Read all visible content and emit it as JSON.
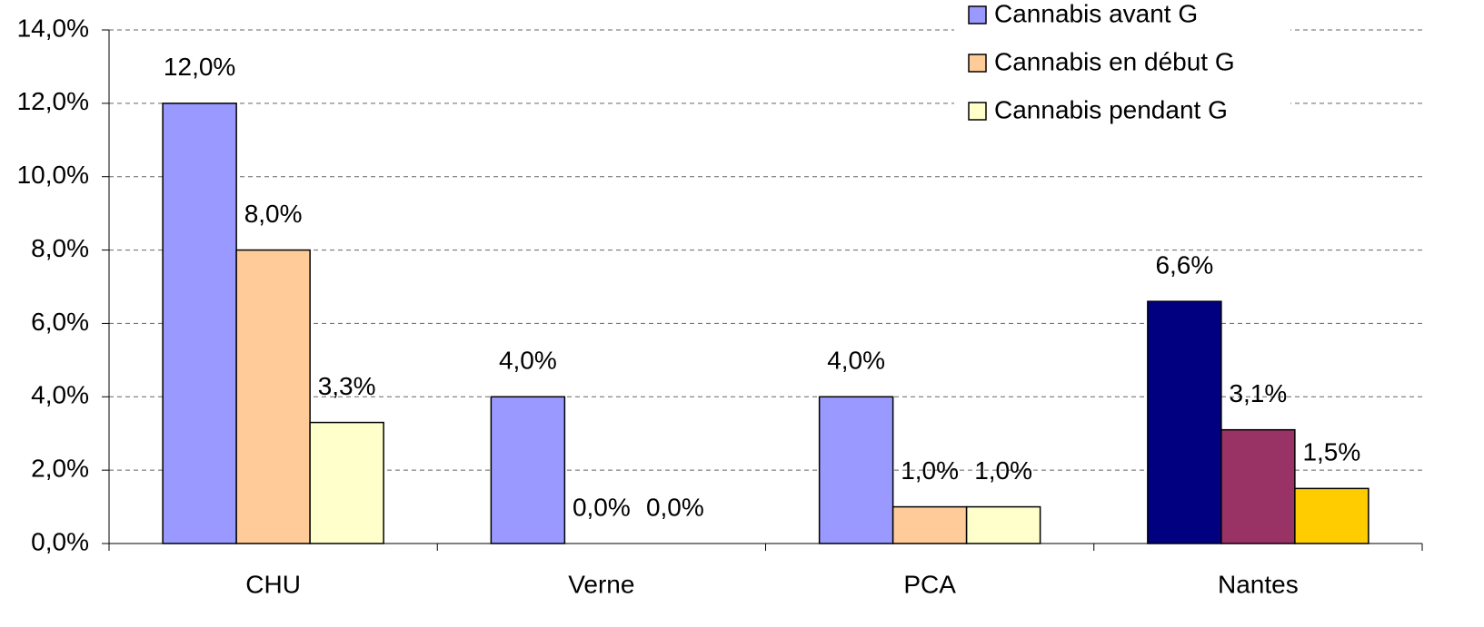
{
  "chart_data": {
    "type": "bar",
    "categories": [
      "CHU",
      "Verne",
      "PCA",
      "Nantes"
    ],
    "series": [
      {
        "name": "Cannabis avant G",
        "color": "#9999ff",
        "colors": [
          "#9999ff",
          "#9999ff",
          "#9999ff",
          "#000080"
        ],
        "values": [
          12.0,
          4.0,
          4.0,
          6.6
        ],
        "value_labels": [
          "12,0%",
          "4,0%",
          "4,0%",
          "6,6%"
        ]
      },
      {
        "name": "Cannabis en début G",
        "color": "#ffcc99",
        "colors": [
          "#ffcc99",
          "#ffcc99",
          "#ffcc99",
          "#993366"
        ],
        "values": [
          8.0,
          0.0,
          1.0,
          3.1
        ],
        "value_labels": [
          "8,0%",
          "0,0%",
          "1,0%",
          "3,1%"
        ]
      },
      {
        "name": "Cannabis pendant G",
        "color": "#ffffcc",
        "colors": [
          "#ffffcc",
          "#ffffcc",
          "#ffffcc",
          "#ffcc00"
        ],
        "values": [
          3.3,
          0.0,
          1.0,
          1.5
        ],
        "value_labels": [
          "3,3%",
          "0,0%",
          "1,0%",
          "1,5%"
        ]
      }
    ],
    "ylim": [
      0,
      14
    ],
    "yticks": [
      {
        "value": 0,
        "label": "0,0%"
      },
      {
        "value": 2,
        "label": "2,0%"
      },
      {
        "value": 4,
        "label": "4,0%"
      },
      {
        "value": 6,
        "label": "6,0%"
      },
      {
        "value": 8,
        "label": "8,0%"
      },
      {
        "value": 10,
        "label": "10,0%"
      },
      {
        "value": 12,
        "label": "12,0%"
      },
      {
        "value": 14,
        "label": "14,0%"
      }
    ],
    "grid": true,
    "legend": "top-right"
  }
}
